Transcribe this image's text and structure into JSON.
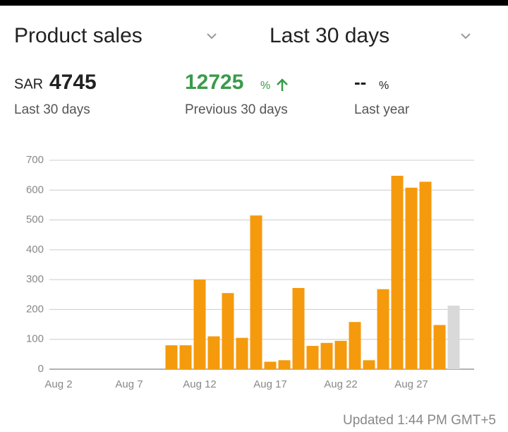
{
  "header": {
    "metric": "Product sales",
    "period": "Last 30 days"
  },
  "summary": {
    "current": {
      "currency": "SAR",
      "value": 4745,
      "label": "Last 30 days"
    },
    "previous": {
      "value": 12725,
      "unit": "%",
      "label": "Previous 30 days"
    },
    "last_year": {
      "value": "--",
      "unit": "%",
      "label": "Last year"
    }
  },
  "chart_data": {
    "type": "bar",
    "categories": [
      "Aug 2",
      null,
      null,
      null,
      null,
      "Aug 7",
      null,
      null,
      null,
      null,
      "Aug 12",
      null,
      null,
      null,
      null,
      "Aug 17",
      null,
      null,
      null,
      null,
      "Aug 22",
      null,
      null,
      null,
      null,
      "Aug 27",
      null,
      null,
      null
    ],
    "values": [
      0,
      0,
      0,
      0,
      0,
      0,
      0,
      0,
      80,
      80,
      300,
      110,
      255,
      105,
      515,
      25,
      30,
      272,
      78,
      88,
      95,
      158,
      30,
      268,
      648,
      608,
      628,
      148,
      213
    ],
    "colors": [
      "#f59a0c",
      "#f59a0c",
      "#f59a0c",
      "#f59a0c",
      "#f59a0c",
      "#f59a0c",
      "#f59a0c",
      "#f59a0c",
      "#f59a0c",
      "#f59a0c",
      "#f59a0c",
      "#f59a0c",
      "#f59a0c",
      "#f59a0c",
      "#f59a0c",
      "#f59a0c",
      "#f59a0c",
      "#f59a0c",
      "#f59a0c",
      "#f59a0c",
      "#f59a0c",
      "#f59a0c",
      "#f59a0c",
      "#f59a0c",
      "#f59a0c",
      "#f59a0c",
      "#f59a0c",
      "#f59a0c",
      "#d9d9d9"
    ],
    "ylim": [
      0,
      700
    ],
    "yticks": [
      0,
      100,
      200,
      300,
      400,
      500,
      600,
      700
    ],
    "grid": true
  },
  "footer": {
    "updated": "Updated 1:44 PM GMT+5"
  }
}
